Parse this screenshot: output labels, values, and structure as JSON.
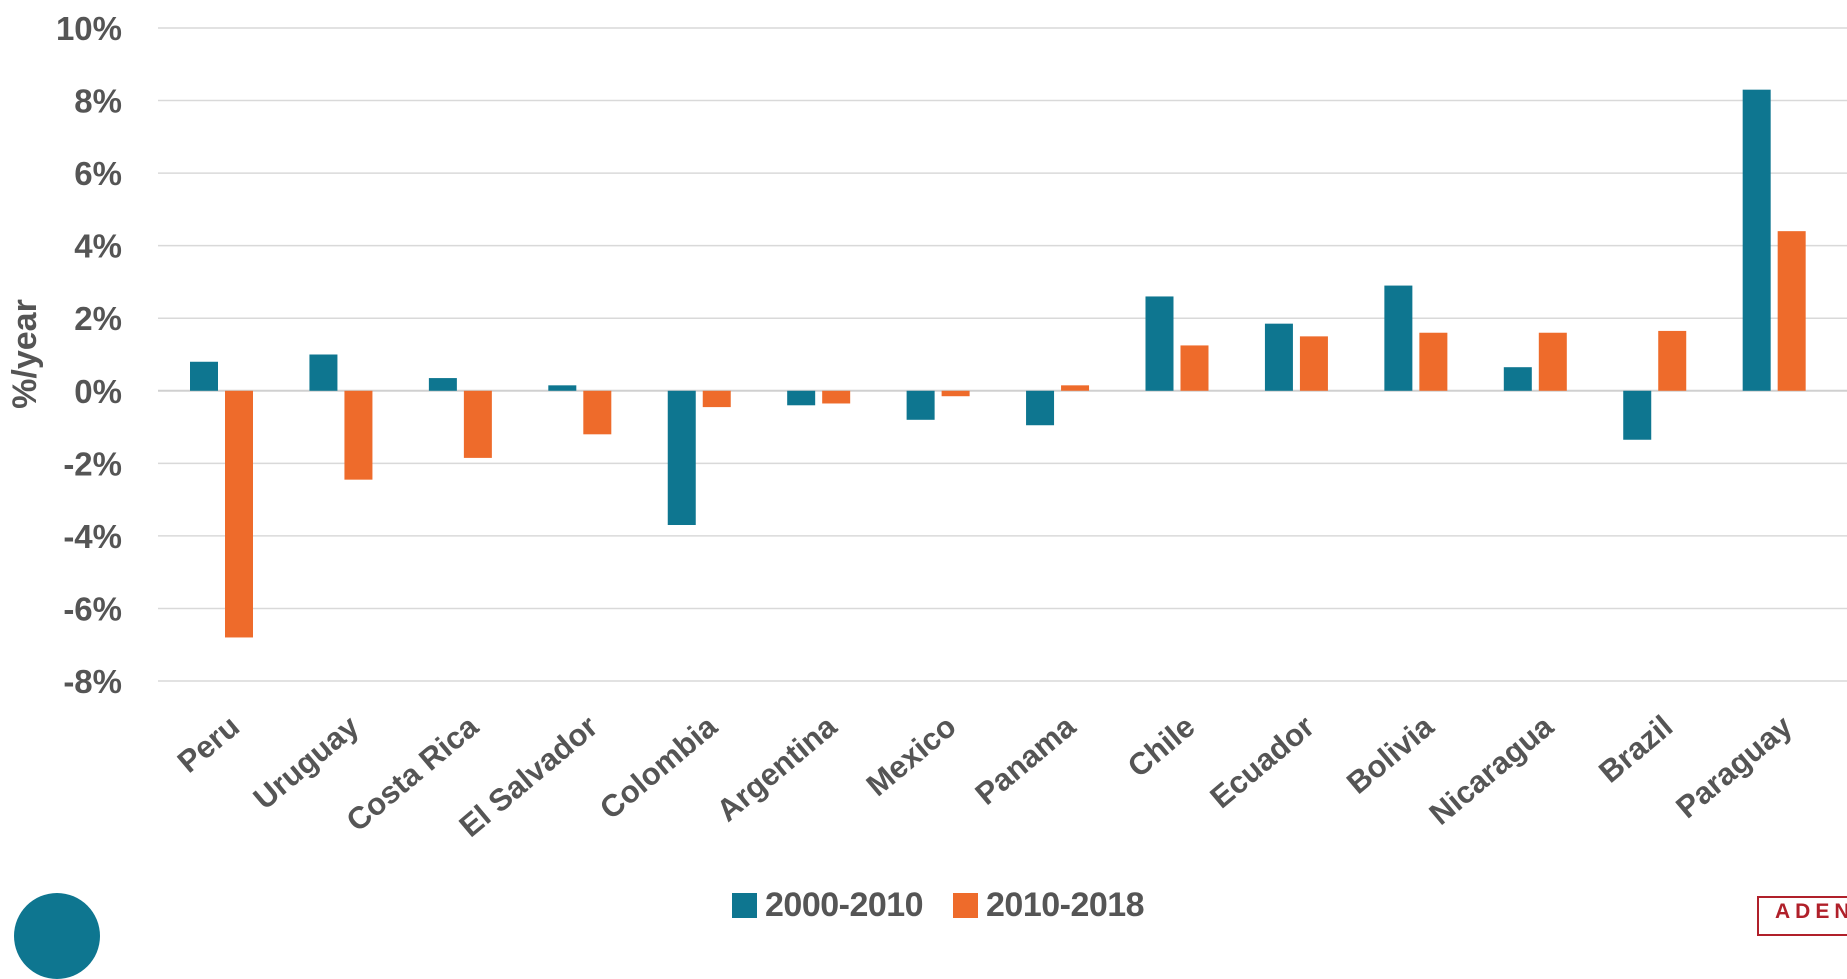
{
  "colors": {
    "series_1": "#0e7690",
    "series_2": "#ee6b2b",
    "grid": "#d9d9d9",
    "text": "#555555",
    "logo": "#b0202a"
  },
  "chart_data": {
    "type": "bar",
    "categories": [
      "Peru",
      "Uruguay",
      "Costa Rica",
      "El Salvador",
      "Colombia",
      "Argentina",
      "Mexico",
      "Panama",
      "Chile",
      "Ecuador",
      "Bolivia",
      "Nicaragua",
      "Brazil",
      "Paraguay"
    ],
    "series": [
      {
        "name": "2000-2010",
        "values": [
          0.8,
          1.0,
          0.35,
          0.15,
          -3.7,
          -0.4,
          -0.8,
          -0.95,
          2.6,
          1.85,
          2.9,
          0.65,
          -1.35,
          8.3
        ]
      },
      {
        "name": "2010-2018",
        "values": [
          -6.8,
          -2.45,
          -1.85,
          -1.2,
          -0.45,
          -0.35,
          -0.15,
          0.15,
          1.25,
          1.5,
          1.6,
          1.6,
          1.65,
          4.4
        ]
      }
    ],
    "ylabel": "%/year",
    "xlabel": "",
    "ylim": [
      -8,
      10
    ],
    "yticks": [
      10,
      8,
      6,
      4,
      2,
      0,
      -2,
      -4,
      -6,
      -8
    ],
    "ytick_labels": [
      "10%",
      "8%",
      "6%",
      "4%",
      "2%",
      "0%",
      "-2%",
      "-4%",
      "-6%",
      "-8%"
    ],
    "grid": true,
    "legend_position": "bottom-center"
  },
  "legend": {
    "items": [
      {
        "label": "2000-2010"
      },
      {
        "label": "2010-2018"
      }
    ]
  },
  "logo": {
    "text": "ADEN"
  }
}
